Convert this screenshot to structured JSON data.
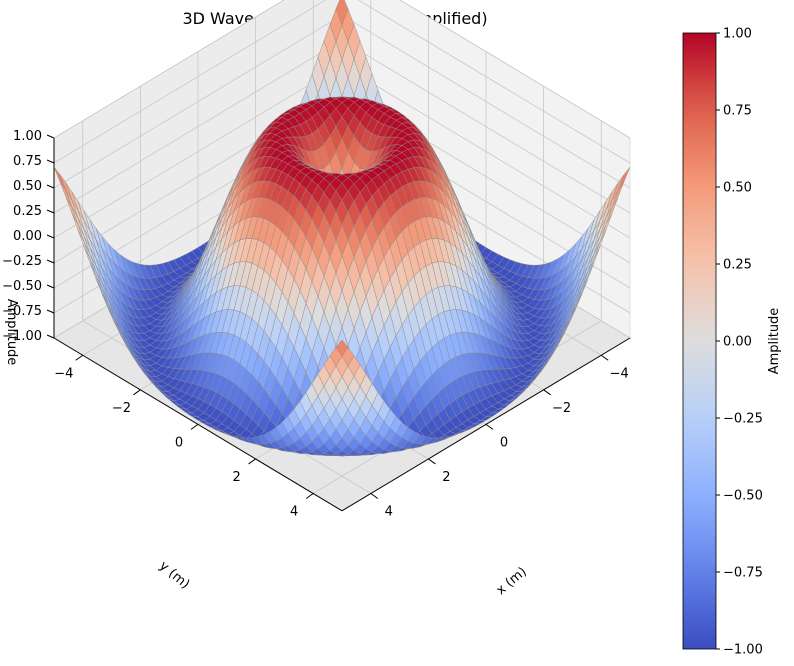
{
  "chart_data": {
    "type": "surface",
    "title": "3D Wave with One Source (Simplified)",
    "xlabel": "x (m)",
    "ylabel": "y (m)",
    "zlabel": "Amplitude",
    "function": "z = sin(sqrt(x^2 + y^2))",
    "xlim": [
      -5,
      5
    ],
    "ylim": [
      -5,
      5
    ],
    "zlim": [
      -1,
      1
    ],
    "x_ticks": [
      "−4",
      "−2",
      "0",
      "2",
      "4"
    ],
    "y_ticks": [
      "−4",
      "−2",
      "0",
      "2",
      "4"
    ],
    "z_ticks": [
      "−1.00",
      "−0.75",
      "−0.50",
      "−0.25",
      "0.00",
      "0.25",
      "0.50",
      "0.75",
      "1.00"
    ],
    "colormap": "coolwarm",
    "grid": true,
    "colorbar": {
      "label": "Amplitude",
      "range": [
        -1,
        1
      ],
      "ticks": [
        "−1.00",
        "−0.75",
        "−0.50",
        "−0.25",
        "0.00",
        "0.25",
        "0.50",
        "0.75",
        "1.00"
      ]
    }
  }
}
